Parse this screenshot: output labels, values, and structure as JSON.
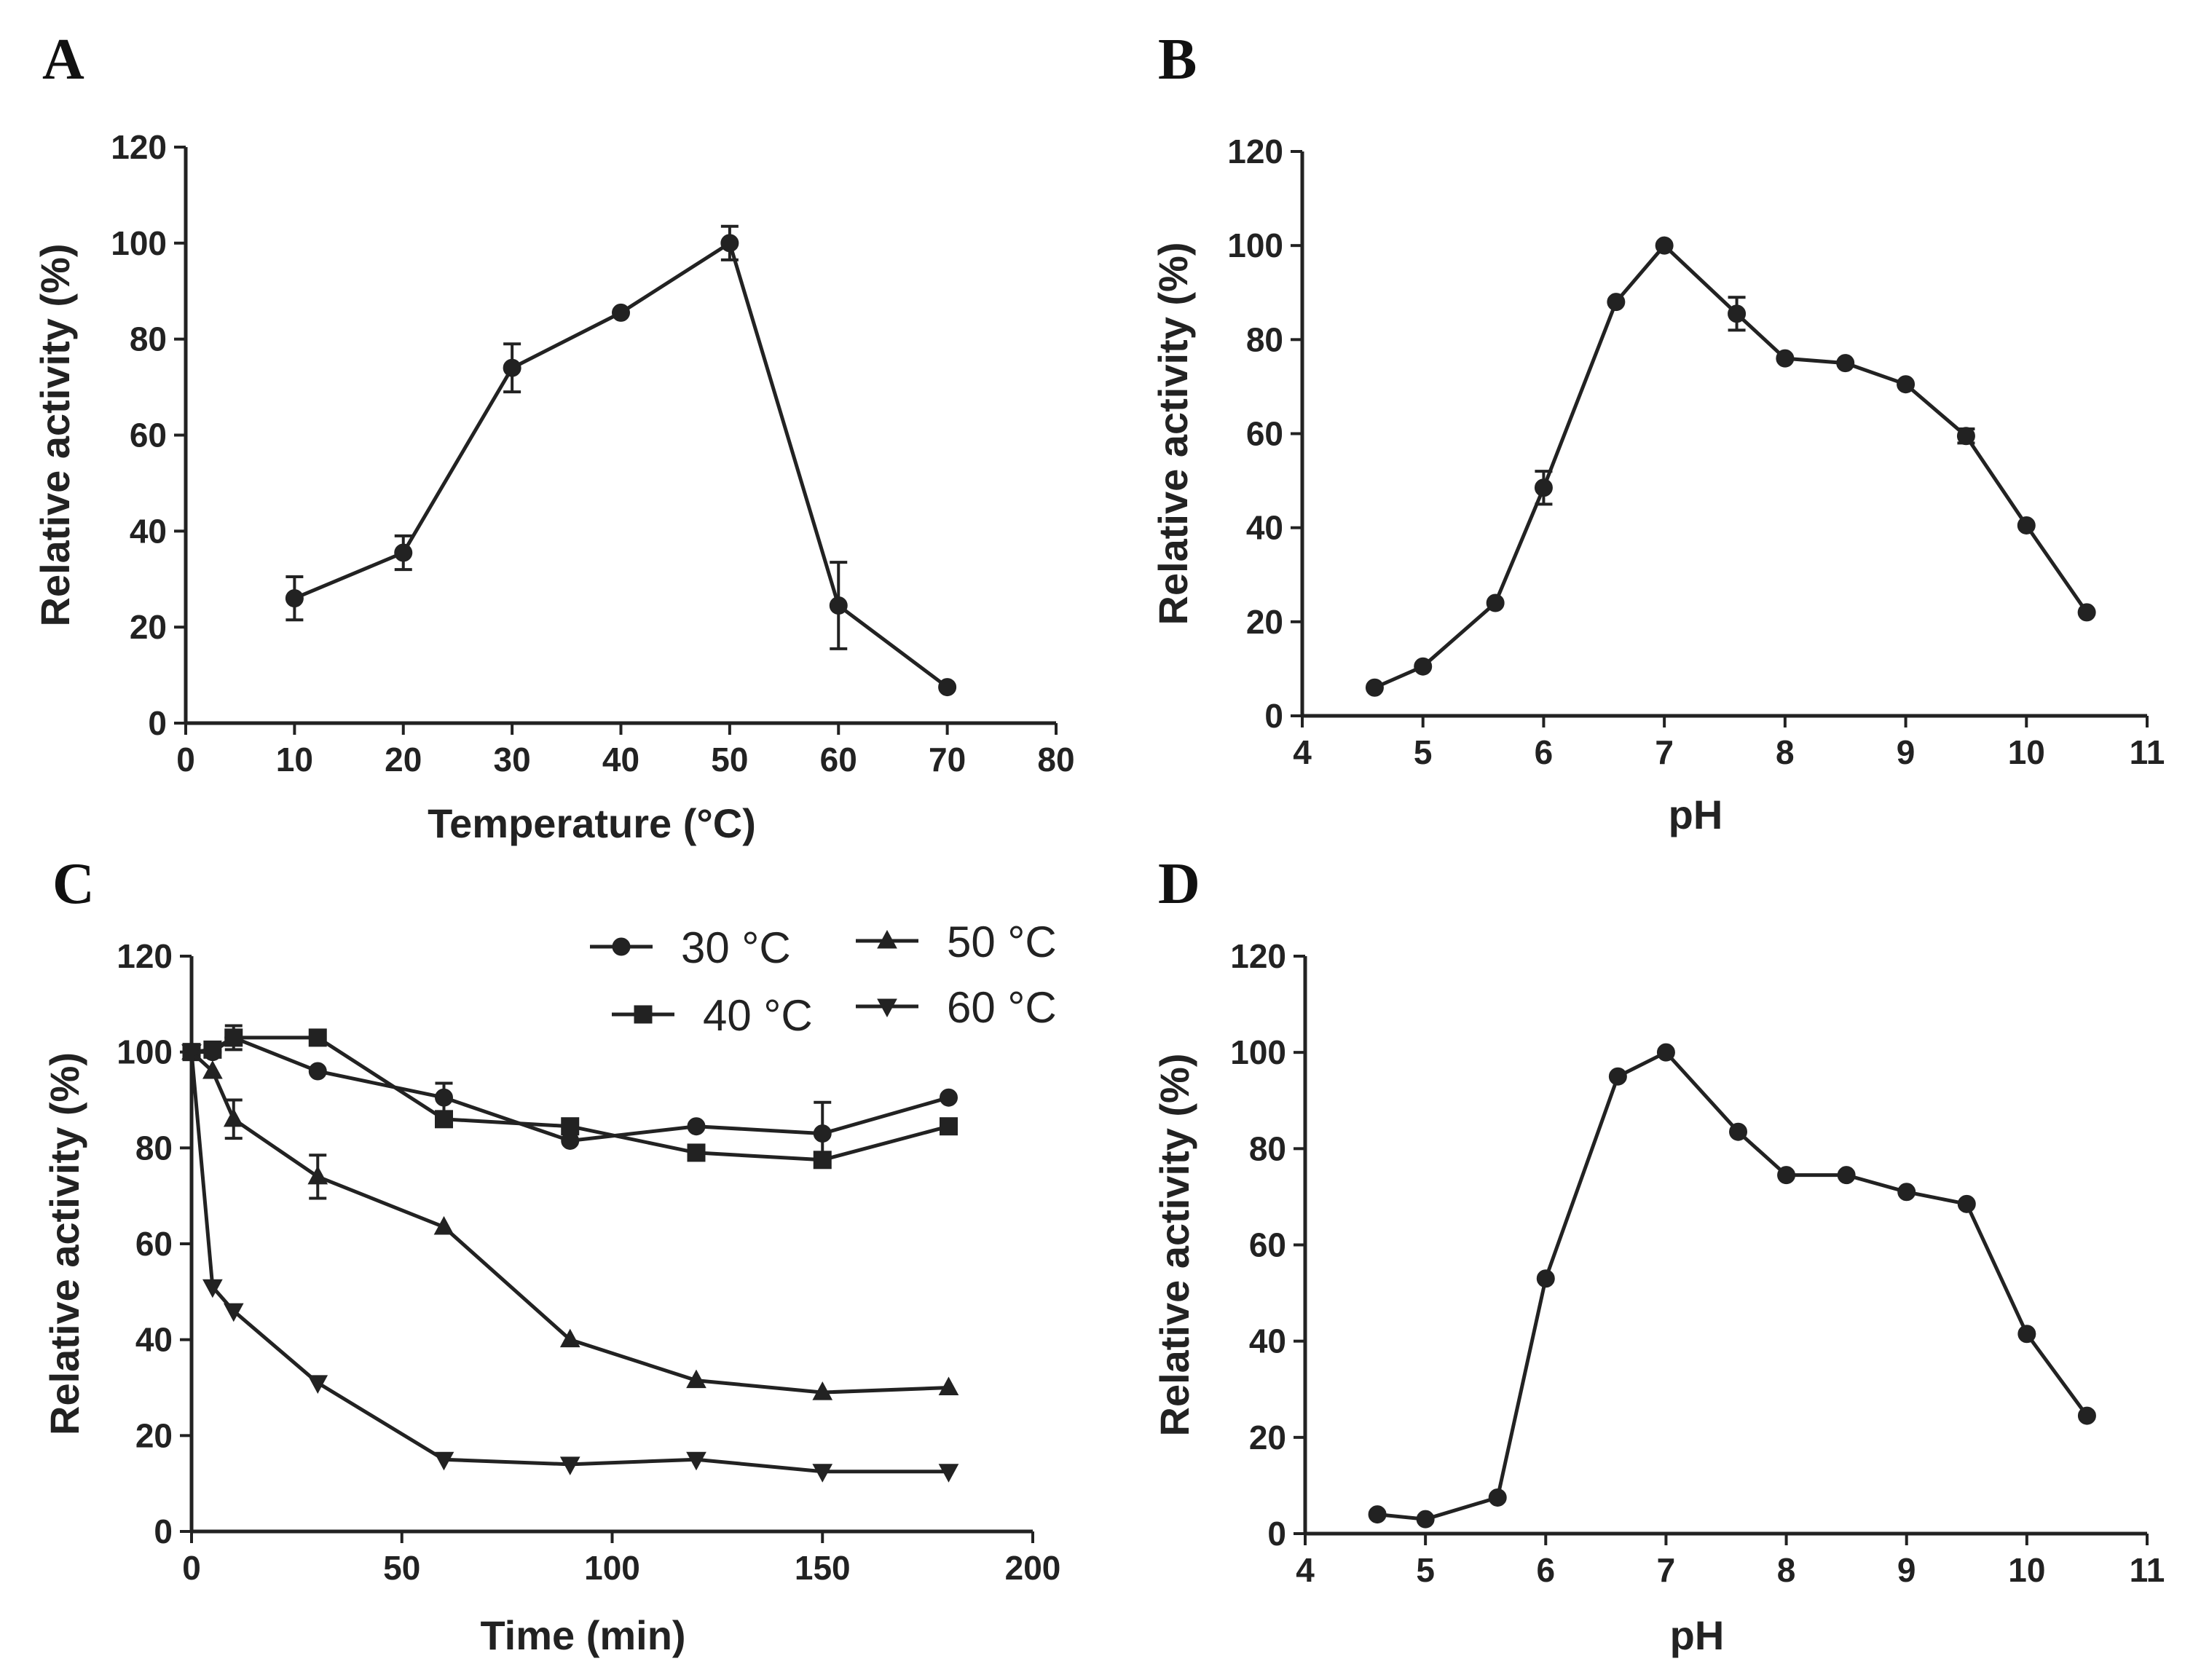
{
  "chart_data": [
    {
      "panel": "A",
      "type": "line",
      "xlabel": "Temperature (°C)",
      "ylabel": "Relative activity (%)",
      "xlim": [
        0,
        80
      ],
      "ylim": [
        0,
        120
      ],
      "xticks": [
        0,
        10,
        20,
        30,
        40,
        50,
        60,
        70,
        80
      ],
      "yticks": [
        0,
        20,
        40,
        60,
        80,
        100,
        120
      ],
      "series": [
        {
          "name": "activity",
          "marker": "circle",
          "x": [
            10,
            20,
            30,
            40,
            50,
            60,
            70
          ],
          "y": [
            26,
            35.5,
            74,
            85.5,
            100,
            24.5,
            7.5
          ],
          "err": [
            4.5,
            3.5,
            5,
            0,
            3.5,
            9,
            0
          ]
        }
      ]
    },
    {
      "panel": "B",
      "type": "line",
      "xlabel": "pH",
      "ylabel": "Relative activity (%)",
      "xlim": [
        4,
        11
      ],
      "ylim": [
        0,
        120
      ],
      "xticks": [
        4,
        5,
        6,
        7,
        8,
        9,
        10,
        11
      ],
      "yticks": [
        0,
        20,
        40,
        60,
        80,
        100,
        120
      ],
      "series": [
        {
          "name": "activity",
          "marker": "circle",
          "x": [
            4.6,
            5,
            5.6,
            6,
            6.6,
            7,
            7.6,
            8,
            8.5,
            9,
            9.5,
            10,
            10.5
          ],
          "y": [
            6,
            10.5,
            24,
            48.5,
            88,
            100,
            85.5,
            76,
            75,
            70.5,
            59.5,
            40.5,
            22
          ],
          "err": [
            0,
            0,
            0,
            3.5,
            0,
            0,
            3.5,
            0,
            0,
            0,
            1.5,
            0,
            0
          ]
        }
      ]
    },
    {
      "panel": "C",
      "type": "line",
      "xlabel": "Time (min)",
      "ylabel": "Relative activity (%)",
      "xlim": [
        0,
        200
      ],
      "ylim": [
        0,
        120
      ],
      "xticks": [
        0,
        50,
        100,
        150,
        200
      ],
      "yticks": [
        0,
        20,
        40,
        60,
        80,
        100,
        120
      ],
      "legend": "top-right",
      "series": [
        {
          "name": "30 °C",
          "marker": "circle",
          "x": [
            0,
            5,
            10,
            30,
            60,
            90,
            120,
            150,
            180
          ],
          "y": [
            100,
            100,
            103,
            96,
            90.5,
            81.5,
            84.5,
            83,
            90.5
          ],
          "err": [
            0,
            0,
            2.5,
            0,
            3,
            0,
            0,
            6.5,
            0
          ]
        },
        {
          "name": "40 °C",
          "marker": "square",
          "x": [
            0,
            5,
            10,
            30,
            60,
            90,
            120,
            150,
            180
          ],
          "y": [
            100,
            100.5,
            103,
            103,
            86,
            84.5,
            79,
            77.5,
            84.5
          ],
          "err": [
            0,
            0,
            0,
            0,
            0,
            0,
            0,
            0,
            0
          ]
        },
        {
          "name": "50 °C",
          "marker": "triangle-up",
          "x": [
            0,
            5,
            10,
            30,
            60,
            90,
            120,
            150,
            180
          ],
          "y": [
            100,
            96,
            86,
            74,
            63.5,
            40,
            31.5,
            29,
            30
          ],
          "err": [
            0,
            0,
            4,
            4.5,
            0,
            0,
            0,
            0,
            0
          ]
        },
        {
          "name": "60 °C",
          "marker": "triangle-down",
          "x": [
            0,
            5,
            10,
            30,
            60,
            90,
            120,
            150,
            180
          ],
          "y": [
            100,
            51,
            46,
            31,
            15,
            14,
            15,
            12.5,
            12.5
          ],
          "err": [
            0,
            0,
            0,
            0,
            0,
            0,
            0,
            0,
            0
          ]
        }
      ]
    },
    {
      "panel": "D",
      "type": "line",
      "xlabel": "pH",
      "ylabel": "Relative activity (%)",
      "xlim": [
        4,
        11
      ],
      "ylim": [
        0,
        120
      ],
      "xticks": [
        4,
        5,
        6,
        7,
        8,
        9,
        10,
        11
      ],
      "yticks": [
        0,
        20,
        40,
        60,
        80,
        100,
        120
      ],
      "series": [
        {
          "name": "activity",
          "marker": "circle",
          "x": [
            4.6,
            5,
            5.6,
            6,
            6.6,
            7,
            7.6,
            8,
            8.5,
            9,
            9.5,
            10,
            10.5
          ],
          "y": [
            4,
            3,
            7.5,
            53,
            95,
            100,
            83.5,
            74.5,
            74.5,
            71,
            68.5,
            41.5,
            24.5
          ],
          "err": [
            0,
            0,
            0,
            0,
            0,
            0,
            0,
            0,
            0,
            0,
            0,
            0,
            0
          ]
        }
      ]
    }
  ]
}
